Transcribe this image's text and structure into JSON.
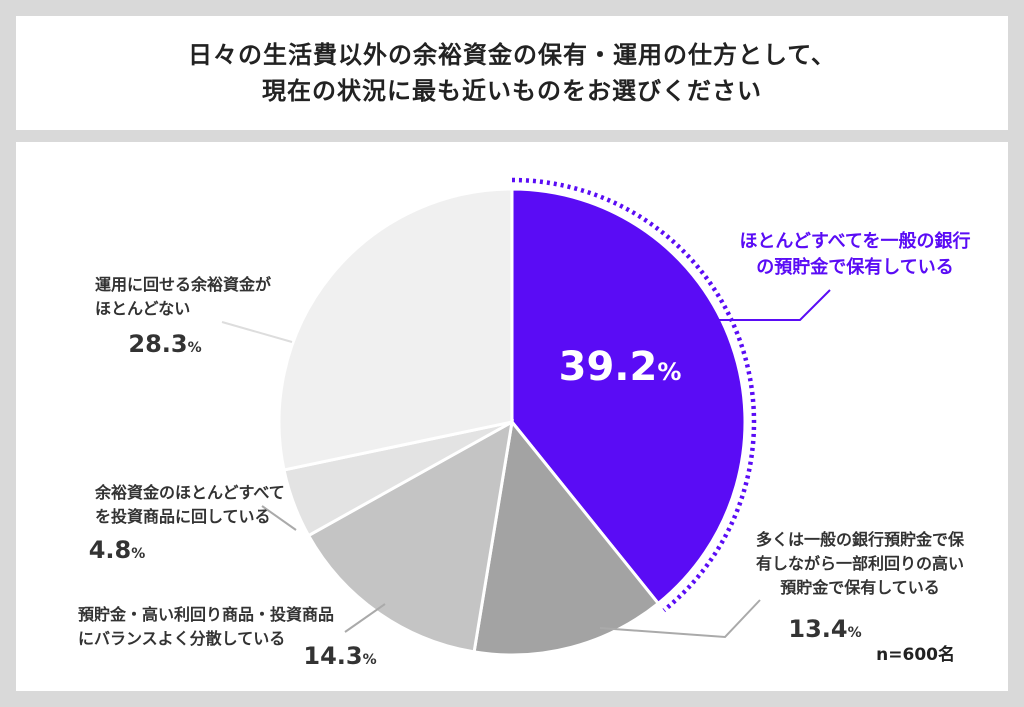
{
  "title": {
    "line1": "日々の生活費以外の余裕資金の保有・運用の仕方として、",
    "line2": "現在の状況に最も近いものをお選びください"
  },
  "sample_size": "n=600名",
  "percent_sign": "%",
  "chart_data": {
    "type": "pie",
    "start_angle_deg": 0,
    "direction": "clockwise",
    "highlight": "ほとんどすべてを一般の銀行の預貯金で保有している",
    "slices": [
      {
        "label": "ほとんどすべてを一般の銀行の預貯金で保有している",
        "label_lines": [
          "ほとんどすべてを一般の銀行",
          "の預貯金で保有している"
        ],
        "value": 39.2,
        "display": "39.2",
        "color": "#5a0cf5"
      },
      {
        "label": "多くは一般の銀行預貯金で保有しながら一部利回りの高い預貯金で保有している",
        "label_lines": [
          "多くは一般の銀行預貯金で保",
          "有しながら一部利回りの高い",
          "預貯金で保有している"
        ],
        "value": 13.4,
        "display": "13.4",
        "color": "#a3a3a3"
      },
      {
        "label": "預貯金・高い利回り商品・投資商品にバランスよく分散している",
        "label_lines": [
          "預貯金・高い利回り商品・投資商品",
          "にバランスよく分散している"
        ],
        "value": 14.3,
        "display": "14.3",
        "color": "#c4c4c4"
      },
      {
        "label": "余裕資金のほとんどすべてを投資商品に回している",
        "label_lines": [
          "余裕資金のほとんどすべて",
          "を投資商品に回している"
        ],
        "value": 4.8,
        "display": "4.8",
        "color": "#e3e3e3"
      },
      {
        "label": "運用に回せる余裕資金がほとんどない",
        "label_lines": [
          "運用に回せる余裕資金が",
          "ほとんどない"
        ],
        "value": 28.3,
        "display": "28.3",
        "color": "#f0f0f0"
      }
    ]
  }
}
